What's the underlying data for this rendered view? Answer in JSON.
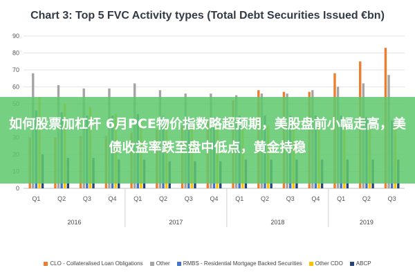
{
  "chart_data": {
    "type": "bar",
    "title": "Chart 3: Top 5 FVC Activity types (Total Debt Securities Issued €bn)",
    "ylim": [
      0,
      90
    ],
    "yticks": [
      0,
      10,
      20,
      30,
      40,
      50,
      60,
      70,
      80,
      90
    ],
    "grid": true,
    "legend_position": "bottom",
    "categories": [
      "Q1",
      "Q2",
      "Q3",
      "Q4",
      "Q1",
      "Q2",
      "Q3",
      "Q4",
      "Q1",
      "Q2",
      "Q3",
      "Q4",
      "Q1",
      "Q2",
      "Q3"
    ],
    "year_groups": [
      {
        "label": "2016",
        "count": 4
      },
      {
        "label": "2017",
        "count": 4
      },
      {
        "label": "2018",
        "count": 4
      },
      {
        "label": "2019",
        "count": 3
      }
    ],
    "series": [
      {
        "name": "CLO - Collateralised Loan Obligations",
        "color": "#ed7d31",
        "values": [
          30,
          30,
          31,
          31,
          33,
          35,
          37,
          40,
          52,
          58,
          57,
          57,
          68,
          75,
          83
        ]
      },
      {
        "name": "Other",
        "color": "#a5a5a5",
        "values": [
          68,
          61,
          59,
          59,
          62,
          58,
          56,
          56,
          55,
          56,
          56,
          58,
          60,
          62,
          67
        ]
      },
      {
        "name": "RMBS - Residential Mortgage Backed Securities",
        "color": "#4472c4",
        "values": [
          46,
          45,
          43,
          43,
          44,
          43,
          42,
          42,
          43,
          43,
          43,
          43,
          43,
          42,
          40
        ]
      },
      {
        "name": "Other CDO",
        "color": "#ffc000",
        "values": [
          54,
          50,
          48,
          44,
          40,
          38,
          37,
          37,
          37,
          37,
          38,
          38,
          38,
          38,
          37
        ]
      },
      {
        "name": "ABCP",
        "color": "#264478",
        "values": [
          20,
          18,
          18,
          17,
          17,
          16,
          16,
          16,
          17,
          17,
          17,
          17,
          17,
          17,
          17
        ]
      }
    ]
  },
  "overlay": {
    "text": "如何股票加杠杆 6月PCE物价指数略超预期，美股盘前小幅走高，美债收益率跌至盘中低点，黄金持稳"
  }
}
